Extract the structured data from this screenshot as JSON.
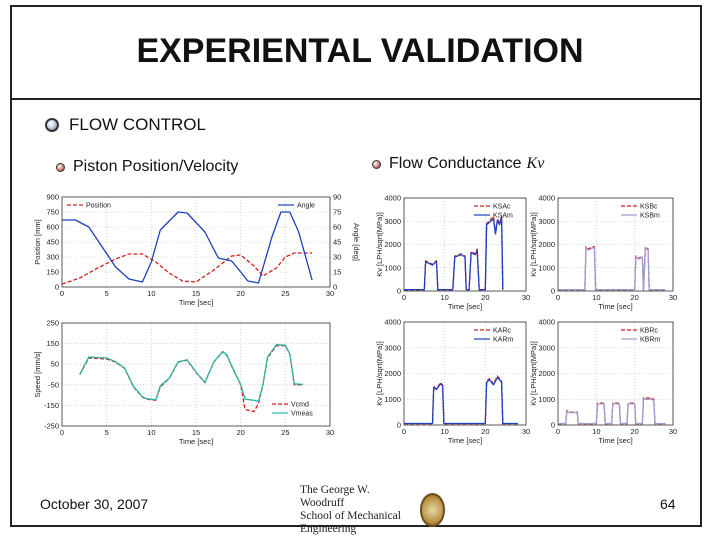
{
  "slide": {
    "title": "EXPERIENTAL VALIDATION",
    "bullet_main": "FLOW CONTROL",
    "bullet_left": "Piston Position/Velocity",
    "bullet_right": "Flow Conductance",
    "bullet_right_symbol": "Kv",
    "date": "October 30, 2007",
    "page_number": "64",
    "logo_line1": "The George W. Woodruff",
    "logo_line2": "School of Mechanical Engineering"
  },
  "chart_data": [
    {
      "id": "pos",
      "type": "line",
      "xlabel": "Time [sec]",
      "ylabel": "Position [mm]",
      "y2label": "Angle [deg]",
      "xlim": [
        0,
        30
      ],
      "xticks": [
        "0",
        "5",
        "10",
        "15",
        "20",
        "25",
        "30"
      ],
      "ylim": [
        0,
        900
      ],
      "yticks": [
        "0",
        "150",
        "300",
        "450",
        "600",
        "750",
        "900"
      ],
      "y2lim": [
        0,
        90
      ],
      "y2ticks": [
        "0",
        "15",
        "30",
        "45",
        "60",
        "75",
        "90"
      ],
      "legend_left": "Position",
      "legend_right": "Angle",
      "series": [
        {
          "name": "Position",
          "color": "#d42020",
          "dash": "4,2",
          "x": [
            0,
            2,
            4,
            6,
            7.5,
            9,
            10.5,
            12,
            13.5,
            15,
            17,
            19,
            20,
            21.5,
            22.5,
            24,
            25,
            26,
            28
          ],
          "y": [
            30,
            90,
            190,
            280,
            330,
            330,
            250,
            140,
            60,
            50,
            170,
            310,
            320,
            210,
            110,
            190,
            300,
            340,
            340
          ]
        },
        {
          "name": "Angle",
          "color": "#1f3fbf",
          "dash": "",
          "x": [
            0,
            1.5,
            3,
            4.5,
            6,
            7.5,
            9,
            10,
            11,
            13,
            14,
            16,
            17.5,
            19,
            20,
            20.8,
            22,
            23.5,
            24.5,
            25.5,
            26.5,
            28
          ],
          "y": [
            67,
            67,
            60,
            40,
            20,
            8,
            5,
            25,
            57,
            75,
            74,
            55,
            29,
            26,
            15,
            6,
            4,
            50,
            75,
            75,
            55,
            7
          ]
        }
      ]
    },
    {
      "id": "speed",
      "type": "line",
      "xlabel": "Time [sec]",
      "ylabel": "Speed [mm/s]",
      "xlim": [
        0,
        30
      ],
      "xticks": [
        "0",
        "5",
        "10",
        "15",
        "20",
        "25",
        "30"
      ],
      "ylim": [
        -250,
        250
      ],
      "yticks": [
        "-250",
        "-150",
        "-50",
        "50",
        "150",
        "250"
      ],
      "legend": [
        "Vcmd",
        "Vmeas"
      ],
      "series": [
        {
          "name": "Vcmd",
          "color": "#d42020",
          "dash": "4,2",
          "x": [
            2,
            3,
            5,
            6,
            7,
            8,
            9,
            9.5,
            10.5,
            11,
            12,
            13,
            14,
            15,
            16,
            17,
            18,
            18.5,
            19,
            20,
            20.5,
            21.5,
            22,
            22.5,
            23,
            24,
            25,
            25.5,
            26,
            27
          ],
          "y": [
            0,
            80,
            75,
            60,
            30,
            -60,
            -110,
            -120,
            -125,
            -60,
            -20,
            60,
            70,
            10,
            -40,
            60,
            110,
            90,
            40,
            -50,
            -170,
            -180,
            -140,
            -50,
            80,
            140,
            140,
            100,
            -50,
            -50
          ]
        },
        {
          "name": "Vmeas",
          "color": "#2ab7a6",
          "dash": "",
          "x": [
            2,
            3,
            5,
            6,
            7,
            8,
            9,
            9.5,
            10.5,
            11,
            12,
            13,
            14,
            15,
            16,
            17,
            18,
            18.5,
            19,
            20,
            20.5,
            21.5,
            22,
            22.5,
            23,
            24,
            25,
            25.5,
            26,
            27
          ],
          "y": [
            2,
            85,
            80,
            62,
            32,
            -58,
            -108,
            -118,
            -122,
            -55,
            -18,
            62,
            72,
            12,
            -38,
            62,
            112,
            92,
            42,
            -48,
            -120,
            -125,
            -130,
            -48,
            85,
            145,
            142,
            100,
            -45,
            -48
          ]
        }
      ]
    },
    {
      "id": "ksa",
      "type": "line",
      "xlabel": "Time [sec]",
      "ylabel": "Kv [LPH/sqrt(MPa)]",
      "xlim": [
        0,
        30
      ],
      "xticks": [
        "0",
        "10",
        "20",
        "30"
      ],
      "ylim": [
        0,
        4000
      ],
      "yticks": [
        "0",
        "1000",
        "2000",
        "3000",
        "4000"
      ],
      "legend": [
        "KSAc",
        "KSAm"
      ],
      "series": [
        {
          "name": "KSAc",
          "color": "#d42020",
          "dash": "4,2",
          "x": [
            0,
            5,
            5.3,
            7,
            8,
            8.3,
            12,
            12.5,
            14,
            15,
            15.3,
            16,
            16.5,
            17.5,
            18,
            18.5,
            19,
            20,
            20.3,
            22,
            22.5,
            23,
            23.5,
            24,
            24.3
          ],
          "y": [
            50,
            50,
            1300,
            1150,
            1300,
            50,
            50,
            1500,
            1600,
            1500,
            50,
            50,
            1700,
            1600,
            1800,
            50,
            50,
            50,
            2900,
            3200,
            2500,
            3100,
            2900,
            3200,
            50
          ]
        },
        {
          "name": "KSAm",
          "color": "#1f3fbf",
          "dash": "",
          "x": [
            0,
            5,
            5.3,
            7,
            8,
            8.3,
            12,
            12.5,
            14,
            15,
            15.3,
            16,
            16.5,
            17.5,
            18,
            18.5,
            19,
            20,
            20.3,
            22,
            22.5,
            23,
            23.5,
            24,
            24.3
          ],
          "y": [
            60,
            60,
            1250,
            1120,
            1270,
            60,
            60,
            1460,
            1560,
            1470,
            60,
            60,
            1650,
            1560,
            1750,
            60,
            60,
            60,
            2850,
            3100,
            2450,
            3050,
            2850,
            3150,
            60
          ]
        }
      ]
    },
    {
      "id": "ksb",
      "type": "line",
      "xlabel": "Time [sec]",
      "ylabel": "Kv [LPH/sqrt(MPa)]",
      "xlim": [
        0,
        30
      ],
      "xticks": [
        "0",
        "10",
        "20",
        "30"
      ],
      "ylim": [
        0,
        4000
      ],
      "yticks": [
        "0",
        "1000",
        "2000",
        "3000",
        "4000"
      ],
      "legend": [
        "KSBc",
        "KSBm"
      ],
      "series": [
        {
          "name": "KSBc",
          "color": "#d42020",
          "dash": "4,2",
          "x": [
            0,
            7,
            7.3,
            8,
            9,
            9.5,
            9.8,
            20,
            20.3,
            21,
            22,
            22.3,
            22.8,
            23.5,
            23.8,
            28
          ],
          "y": [
            50,
            50,
            1900,
            1800,
            1900,
            1900,
            50,
            50,
            1500,
            1400,
            1500,
            50,
            1900,
            1800,
            50,
            50
          ]
        },
        {
          "name": "KSBm",
          "color": "#9c9ccf",
          "dash": "",
          "x": [
            0,
            7,
            7.3,
            8,
            9,
            9.5,
            9.8,
            20,
            20.3,
            21,
            22,
            22.3,
            22.8,
            23.5,
            23.8,
            28
          ],
          "y": [
            60,
            60,
            1850,
            1760,
            1860,
            1860,
            60,
            60,
            1460,
            1370,
            1460,
            60,
            1860,
            1760,
            60,
            60
          ]
        }
      ]
    },
    {
      "id": "kar",
      "type": "line",
      "xlabel": "Time [sec]",
      "ylabel": "Kv [LPH/sqrt(MPa)]",
      "xlim": [
        0,
        30
      ],
      "xticks": [
        "0",
        "10",
        "20",
        "30"
      ],
      "ylim": [
        0,
        4000
      ],
      "yticks": [
        "0",
        "1000",
        "2000",
        "3000",
        "4000"
      ],
      "legend": [
        "KARc",
        "KARm"
      ],
      "series": [
        {
          "name": "KARc",
          "color": "#d42020",
          "dash": "4,2",
          "x": [
            0,
            7,
            7.3,
            8,
            9,
            9.5,
            9.8,
            20,
            20.3,
            21,
            22,
            23,
            24,
            24.3,
            28
          ],
          "y": [
            50,
            50,
            1500,
            1400,
            1650,
            1550,
            50,
            50,
            1700,
            1800,
            1600,
            1900,
            1700,
            50,
            50
          ]
        },
        {
          "name": "KARm",
          "color": "#1f3fbf",
          "dash": "",
          "x": [
            0,
            7,
            7.3,
            8,
            9,
            9.5,
            9.8,
            20,
            20.3,
            21,
            22,
            23,
            24,
            24.3,
            28
          ],
          "y": [
            60,
            60,
            1460,
            1380,
            1600,
            1520,
            60,
            60,
            1650,
            1760,
            1560,
            1850,
            1660,
            60,
            60
          ]
        }
      ]
    },
    {
      "id": "kbr",
      "type": "line",
      "xlabel": "Time [sec]",
      "ylabel": "Kv [LPH/sqrt(MPa)]",
      "xlim": [
        0,
        30
      ],
      "xticks": [
        "0",
        "10",
        "20",
        "30"
      ],
      "ylim": [
        0,
        4000
      ],
      "yticks": [
        "0",
        "1000",
        "2000",
        "3000",
        "4000"
      ],
      "legend": [
        "KBRc",
        "KBRm"
      ],
      "series": [
        {
          "name": "KBRc",
          "color": "#d42020",
          "dash": "4,2",
          "x": [
            0,
            2,
            2.3,
            3,
            5,
            5.3,
            10,
            10.3,
            12,
            12.3,
            14,
            14.3,
            16,
            16.3,
            18,
            18.3,
            20,
            20.3,
            22,
            22.3,
            24,
            24.3,
            25,
            25.3,
            28
          ],
          "y": [
            50,
            50,
            550,
            500,
            500,
            50,
            50,
            850,
            850,
            50,
            50,
            850,
            850,
            50,
            50,
            850,
            850,
            50,
            50,
            1050,
            1050,
            1050,
            1000,
            50,
            50
          ]
        },
        {
          "name": "KBRm",
          "color": "#9c9ccf",
          "dash": "",
          "x": [
            0,
            2,
            2.3,
            3,
            5,
            5.3,
            10,
            10.3,
            12,
            12.3,
            14,
            14.3,
            16,
            16.3,
            18,
            18.3,
            20,
            20.3,
            22,
            22.3,
            24,
            24.3,
            25,
            25.3,
            28
          ],
          "y": [
            60,
            60,
            520,
            480,
            480,
            60,
            60,
            820,
            820,
            60,
            60,
            820,
            820,
            60,
            60,
            820,
            820,
            60,
            60,
            1000,
            1000,
            1000,
            960,
            60,
            60
          ]
        }
      ]
    }
  ]
}
